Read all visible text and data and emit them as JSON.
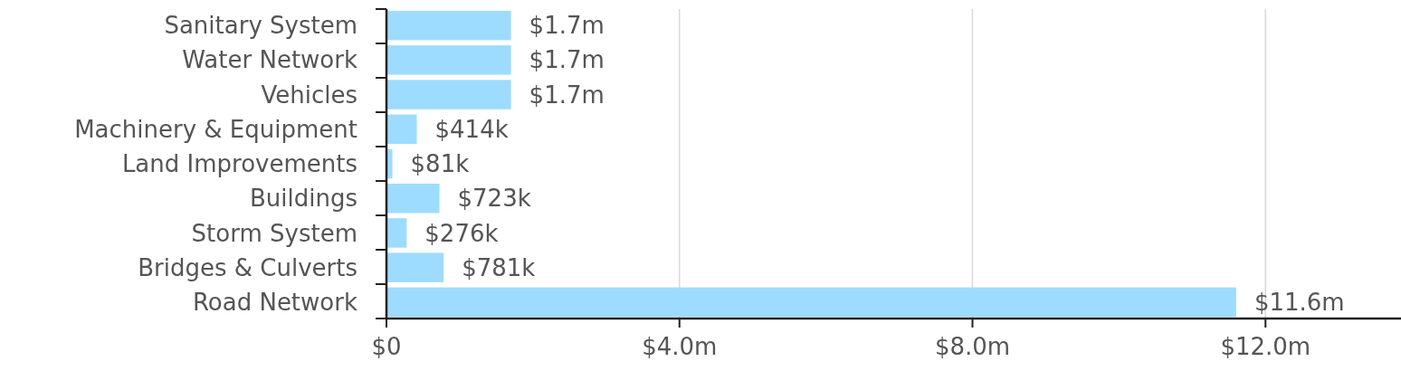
{
  "chart_data": {
    "type": "bar",
    "orientation": "horizontal",
    "categories": [
      "Sanitary System",
      "Water Network",
      "Vehicles",
      "Machinery & Equipment",
      "Land Improvements",
      "Buildings",
      "Storm System",
      "Bridges & Culverts",
      "Road Network"
    ],
    "values": [
      1700000,
      1700000,
      1700000,
      414000,
      81000,
      723000,
      276000,
      781000,
      11600000
    ],
    "value_labels": [
      "$1.7m",
      "$1.7m",
      "$1.7m",
      "$414k",
      "$81k",
      "$723k",
      "$276k",
      "$781k",
      "$11.6m"
    ],
    "color": "#9edcff",
    "xlim": [
      0,
      13850000
    ],
    "xticks": [
      {
        "value": 0,
        "label": "$0"
      },
      {
        "value": 4000000,
        "label": "$4.0m"
      },
      {
        "value": 8000000,
        "label": "$8.0m"
      },
      {
        "value": 12000000,
        "label": "$12.0m"
      }
    ],
    "grid": "x"
  }
}
